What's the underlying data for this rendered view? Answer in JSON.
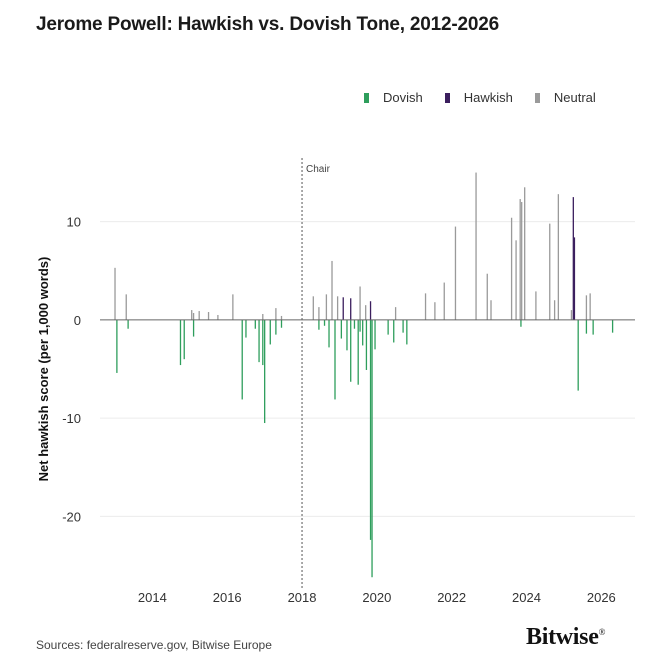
{
  "chart_title": "Jerome Powell: Hawkish vs. Dovish Tone, 2012-2026",
  "legend": [
    {
      "label": "Dovish",
      "color": "#2e9e5c"
    },
    {
      "label": "Hawkish",
      "color": "#3b1e5e"
    },
    {
      "label": "Neutral",
      "color": "#9a9a9a"
    }
  ],
  "source": "Sources: federalreserve.gov, Bitwise Europe",
  "brand": "Bitwise",
  "brand_mark": "®",
  "chart_data": {
    "type": "bar",
    "title": "Jerome Powell: Hawkish vs. Dovish Tone, 2012-2026",
    "xlabel": "",
    "ylabel": "Net hawkish score (per 1,000 words)",
    "xlim": [
      2012.6,
      2026.9
    ],
    "ylim": [
      -27.5,
      17.5
    ],
    "x_ticks": [
      2014,
      2016,
      2018,
      2020,
      2022,
      2024,
      2026
    ],
    "y_ticks": [
      10,
      0,
      -10,
      -20
    ],
    "grid": true,
    "legend_position": "top-right",
    "annotations": [
      {
        "x": 2018.0,
        "label": "Chair"
      }
    ],
    "series": [
      {
        "name": "Dovish",
        "color": "#2e9e5c",
        "points": [
          {
            "x": 2013.05,
            "y": -5.4
          },
          {
            "x": 2013.35,
            "y": -0.9
          },
          {
            "x": 2014.75,
            "y": -4.6
          },
          {
            "x": 2014.85,
            "y": -4.0
          },
          {
            "x": 2015.1,
            "y": -1.7
          },
          {
            "x": 2016.4,
            "y": -8.1
          },
          {
            "x": 2016.5,
            "y": -1.8
          },
          {
            "x": 2016.75,
            "y": -0.9
          },
          {
            "x": 2016.85,
            "y": -4.3
          },
          {
            "x": 2016.95,
            "y": -4.6
          },
          {
            "x": 2017.0,
            "y": -10.5
          },
          {
            "x": 2017.15,
            "y": -2.5
          },
          {
            "x": 2017.3,
            "y": -1.5
          },
          {
            "x": 2017.45,
            "y": -0.8
          },
          {
            "x": 2018.45,
            "y": -1.0
          },
          {
            "x": 2018.6,
            "y": -0.6
          },
          {
            "x": 2018.72,
            "y": -2.8
          },
          {
            "x": 2018.88,
            "y": -8.1
          },
          {
            "x": 2019.05,
            "y": -1.9
          },
          {
            "x": 2019.2,
            "y": -3.1
          },
          {
            "x": 2019.3,
            "y": -6.3
          },
          {
            "x": 2019.4,
            "y": -0.9
          },
          {
            "x": 2019.5,
            "y": -6.6
          },
          {
            "x": 2019.55,
            "y": -1.2
          },
          {
            "x": 2019.62,
            "y": -2.6
          },
          {
            "x": 2019.72,
            "y": -5.1
          },
          {
            "x": 2019.83,
            "y": -22.4
          },
          {
            "x": 2019.87,
            "y": -26.2
          },
          {
            "x": 2019.95,
            "y": -3.0
          },
          {
            "x": 2020.3,
            "y": -1.5
          },
          {
            "x": 2020.45,
            "y": -2.3
          },
          {
            "x": 2020.7,
            "y": -1.3
          },
          {
            "x": 2020.8,
            "y": -2.5
          },
          {
            "x": 2023.85,
            "y": -0.7
          },
          {
            "x": 2025.38,
            "y": -7.2
          },
          {
            "x": 2025.6,
            "y": -1.4
          },
          {
            "x": 2025.78,
            "y": -1.5
          },
          {
            "x": 2026.3,
            "y": -1.3
          }
        ]
      },
      {
        "name": "Hawkish",
        "color": "#3b1e5e",
        "points": [
          {
            "x": 2019.1,
            "y": 2.3
          },
          {
            "x": 2019.3,
            "y": 2.2
          },
          {
            "x": 2019.83,
            "y": 1.9
          },
          {
            "x": 2025.25,
            "y": 12.5
          },
          {
            "x": 2025.28,
            "y": 8.4
          }
        ]
      },
      {
        "name": "Neutral",
        "color": "#9a9a9a",
        "points": [
          {
            "x": 2013.0,
            "y": 5.3
          },
          {
            "x": 2013.3,
            "y": 2.6
          },
          {
            "x": 2015.05,
            "y": 1.0
          },
          {
            "x": 2015.1,
            "y": 0.7
          },
          {
            "x": 2015.25,
            "y": 0.9
          },
          {
            "x": 2015.5,
            "y": 0.8
          },
          {
            "x": 2015.75,
            "y": 0.5
          },
          {
            "x": 2016.15,
            "y": 2.6
          },
          {
            "x": 2016.95,
            "y": 0.6
          },
          {
            "x": 2017.3,
            "y": 1.2
          },
          {
            "x": 2017.45,
            "y": 0.4
          },
          {
            "x": 2018.3,
            "y": 2.4
          },
          {
            "x": 2018.45,
            "y": 1.3
          },
          {
            "x": 2018.65,
            "y": 2.6
          },
          {
            "x": 2018.8,
            "y": 6.0
          },
          {
            "x": 2018.95,
            "y": 2.4
          },
          {
            "x": 2019.55,
            "y": 3.4
          },
          {
            "x": 2019.7,
            "y": 1.5
          },
          {
            "x": 2020.5,
            "y": 1.3
          },
          {
            "x": 2021.3,
            "y": 2.7
          },
          {
            "x": 2021.55,
            "y": 1.8
          },
          {
            "x": 2021.8,
            "y": 3.8
          },
          {
            "x": 2022.1,
            "y": 9.5
          },
          {
            "x": 2022.65,
            "y": 15.0
          },
          {
            "x": 2022.95,
            "y": 4.7
          },
          {
            "x": 2023.05,
            "y": 2.0
          },
          {
            "x": 2023.6,
            "y": 10.4
          },
          {
            "x": 2023.72,
            "y": 8.1
          },
          {
            "x": 2023.83,
            "y": 12.3
          },
          {
            "x": 2023.87,
            "y": 12.0
          },
          {
            "x": 2023.95,
            "y": 13.5
          },
          {
            "x": 2024.25,
            "y": 2.9
          },
          {
            "x": 2024.62,
            "y": 9.8
          },
          {
            "x": 2024.75,
            "y": 2.0
          },
          {
            "x": 2024.85,
            "y": 12.8
          },
          {
            "x": 2025.2,
            "y": 1.0
          },
          {
            "x": 2025.6,
            "y": 2.5
          },
          {
            "x": 2025.7,
            "y": 2.7
          }
        ]
      }
    ]
  }
}
